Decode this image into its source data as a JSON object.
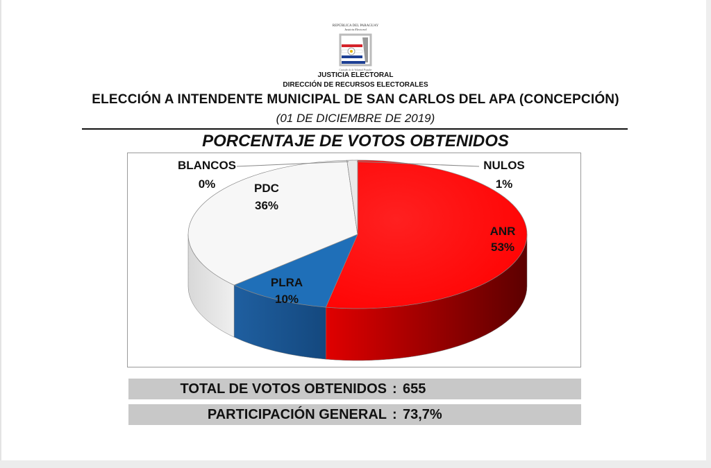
{
  "header": {
    "logo_text_top": "REPÚBLICA DEL PARAGUAY",
    "logo_text_sub": "Justicia Electoral",
    "logo_text_bottom": "Custodio de la Voluntad Popular",
    "org_name": "JUSTICIA ELECTORAL",
    "org_department": "DIRECCIÓN DE RECURSOS ELECTORALES",
    "election_title": "ELECCIÓN A INTENDENTE MUNICIPAL DE SAN CARLOS DEL APA (CONCEPCIÓN)",
    "election_date": "(01 DE DICIEMBRE DE 2019)",
    "chart_title": "PORCENTAJE DE VOTOS OBTENIDOS"
  },
  "colors": {
    "anr": "#ff1010",
    "plra": "#1f6fb8",
    "pdc": "#f7f7f7",
    "nulos": "#e9e9e9",
    "blancos": "#f2f2f2",
    "stat_bar": "#c8c8c8"
  },
  "chart_data": {
    "type": "pie",
    "title": "PORCENTAJE DE VOTOS OBTENIDOS",
    "three_d": true,
    "slices": [
      {
        "name": "ANR",
        "value": 53,
        "label": "53%"
      },
      {
        "name": "PLRA",
        "value": 10,
        "label": "10%"
      },
      {
        "name": "PDC",
        "value": 36,
        "label": "36%"
      },
      {
        "name": "BLANCOS",
        "value": 0,
        "label": "0%"
      },
      {
        "name": "NULOS",
        "value": 1,
        "label": "1%"
      }
    ]
  },
  "stats": {
    "total_label": "TOTAL DE VOTOS OBTENIDOS",
    "total_value": "655",
    "participation_label": "PARTICIPACIÓN GENERAL",
    "participation_value": "73,7%",
    "separator": ":"
  }
}
